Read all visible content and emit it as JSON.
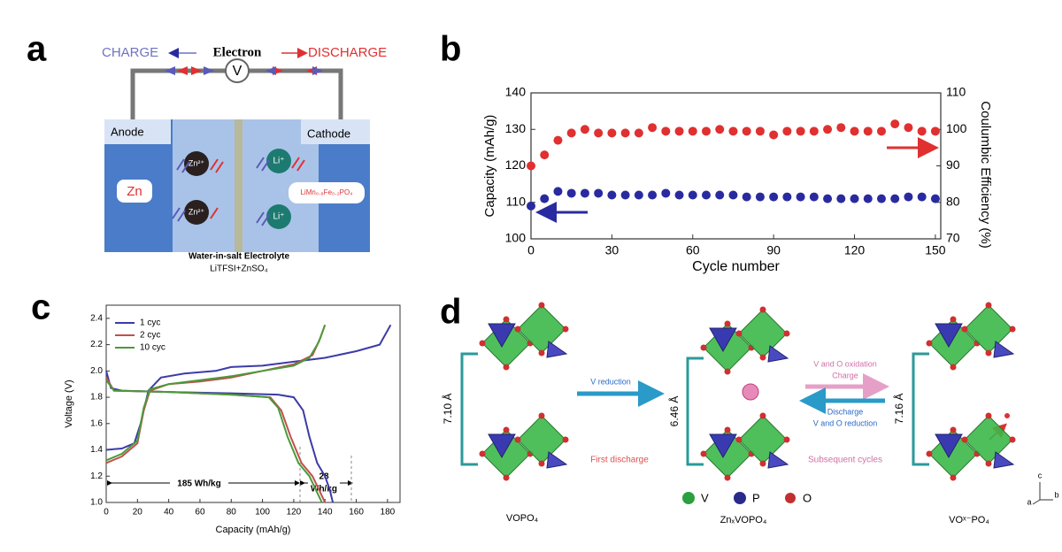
{
  "panel_labels": [
    "a",
    "b",
    "c",
    "d"
  ],
  "panel_a": {
    "charge": "CHARGE",
    "electron": "Electron",
    "discharge": "DISCHARGE",
    "meter": "V",
    "anode": "Anode",
    "cathode": "Cathode",
    "anode_material": "Zn",
    "cathode_material": "LiMn₀.₈Fe₀.₂PO₄",
    "zn_ion": "Zn²⁺",
    "li_ion": "Li⁺",
    "electrolyte": "Water-in-salt Electrolyte",
    "electrolyte_formula": "LiTFSI+ZnSO₄"
  },
  "chart_data": [
    {
      "type": "scatter",
      "xlabel": "Cycle number",
      "ylabel": "Capacity (mAh/g)",
      "y2label": "Coulumbic  Efficiency (%)",
      "xlim": [
        0,
        152
      ],
      "xticks": [
        0,
        30,
        60,
        90,
        120,
        150
      ],
      "ylim": [
        100,
        140
      ],
      "yticks": [
        100,
        110,
        120,
        130,
        140
      ],
      "y2lim": [
        70,
        110
      ],
      "y2ticks": [
        70,
        80,
        90,
        100,
        110
      ],
      "x": [
        0,
        5,
        10,
        15,
        20,
        25,
        30,
        35,
        40,
        45,
        50,
        55,
        60,
        65,
        70,
        75,
        80,
        85,
        90,
        95,
        100,
        105,
        110,
        115,
        120,
        125,
        130,
        135,
        140,
        145,
        150
      ],
      "series": [
        {
          "name": "Capacity",
          "color": "#2a2aa0",
          "axis": "y",
          "values": [
            109,
            111,
            113,
            112.5,
            112.5,
            112.5,
            112,
            112,
            112,
            112,
            112.5,
            112,
            112,
            112,
            112,
            112,
            111.5,
            111.5,
            111.5,
            111.5,
            111.5,
            111.5,
            111,
            111,
            111,
            111,
            111,
            111,
            111.5,
            111.5,
            111
          ]
        },
        {
          "name": "Coulumbic Efficiency",
          "color": "#e03030",
          "axis": "y2",
          "values": [
            90,
            93,
            97,
            99,
            100,
            99,
            99,
            99,
            99,
            100.5,
            99.5,
            99.5,
            99.5,
            99.5,
            100,
            99.5,
            99.5,
            99.5,
            98.5,
            99.5,
            99.5,
            99.5,
            100,
            100.5,
            99.5,
            99.5,
            99.5,
            101.5,
            100.5,
            99.5,
            99.5
          ]
        }
      ]
    },
    {
      "type": "line",
      "xlabel": "Capacity (mAh/g)",
      "ylabel": "Voltage (V)",
      "xlim": [
        0,
        188
      ],
      "xticks": [
        0,
        20,
        40,
        60,
        80,
        100,
        120,
        140,
        160,
        180
      ],
      "ylim": [
        1.0,
        2.5
      ],
      "yticks": [
        {
          "value": 1.0,
          "label": "1.0"
        },
        1.2,
        1.4,
        1.6,
        1.8,
        {
          "value": 2.0,
          "label": "2.0"
        },
        2.2,
        2.4
      ],
      "series": [
        {
          "name": "1 cyc",
          "color": "#3b3ba8",
          "x": [
            0,
            3,
            10,
            40,
            80,
            110,
            120,
            126,
            130,
            135,
            140,
            143,
            145,
            null,
            0,
            10,
            18,
            22,
            27,
            35,
            50,
            70,
            80,
            100,
            120,
            140,
            160,
            175,
            182
          ],
          "values": [
            2.0,
            1.87,
            1.85,
            1.84,
            1.83,
            1.82,
            1.8,
            1.7,
            1.5,
            1.3,
            1.2,
            1.1,
            1.0,
            null,
            1.4,
            1.41,
            1.45,
            1.6,
            1.85,
            1.95,
            1.98,
            2.0,
            2.03,
            2.04,
            2.07,
            2.1,
            2.15,
            2.2,
            2.35
          ]
        },
        {
          "name": "2 cyc",
          "color": "#c0504d",
          "x": [
            0,
            5,
            40,
            80,
            105,
            112,
            118,
            125,
            132,
            136,
            140,
            null,
            0,
            10,
            20,
            24,
            28,
            40,
            60,
            80,
            100,
            120,
            132,
            137,
            140
          ],
          "values": [
            1.95,
            1.85,
            1.84,
            1.82,
            1.8,
            1.7,
            1.5,
            1.3,
            1.2,
            1.1,
            1.0,
            null,
            1.3,
            1.35,
            1.45,
            1.7,
            1.85,
            1.9,
            1.92,
            1.95,
            2.0,
            2.05,
            2.12,
            2.25,
            2.35
          ]
        },
        {
          "name": "10 cyc",
          "color": "#4a9a3a",
          "x": [
            0,
            5,
            40,
            80,
            104,
            110,
            116,
            123,
            130,
            134,
            138,
            null,
            0,
            10,
            20,
            24,
            28,
            40,
            60,
            80,
            100,
            120,
            130,
            136,
            140
          ],
          "values": [
            1.93,
            1.85,
            1.84,
            1.82,
            1.8,
            1.72,
            1.5,
            1.3,
            1.2,
            1.1,
            1.0,
            null,
            1.32,
            1.37,
            1.47,
            1.72,
            1.86,
            1.9,
            1.93,
            1.96,
            2.0,
            2.04,
            2.1,
            2.22,
            2.35
          ]
        }
      ],
      "annotations": [
        "185 Wh/kg",
        "28",
        "Wh/kg"
      ]
    }
  ],
  "panel_d": {
    "spacings": [
      "7.10 Å",
      "6.46 Å",
      "7.16 Å"
    ],
    "v_reduction": "V reduction",
    "first_discharge": "First discharge",
    "oxidation": "V and O oxidation",
    "charge": "Charge",
    "discharge": "Discharge",
    "reduction": "V and O reduction",
    "subsequent": "Subsequent cycles",
    "legend": [
      "V",
      "P",
      "O"
    ],
    "compounds": [
      "VOPO₄",
      "ZnₓVOPO₄",
      "VOˣ⁻PO₄"
    ],
    "axes": [
      "c",
      "b",
      "a"
    ]
  }
}
